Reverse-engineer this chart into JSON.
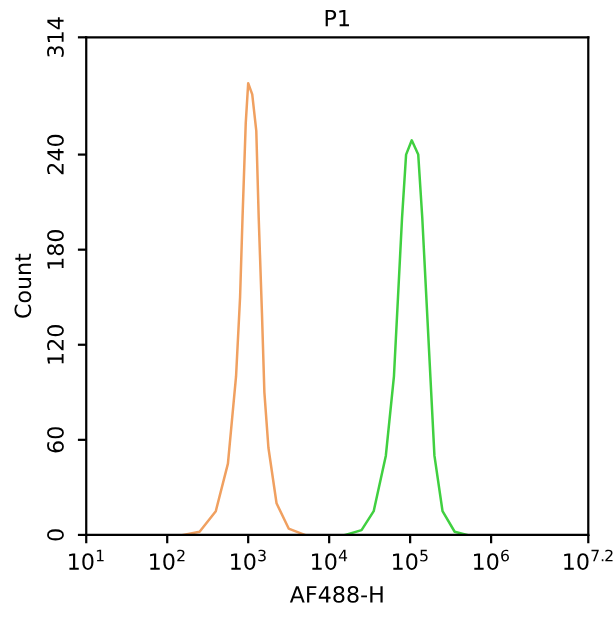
{
  "chart_data": {
    "type": "line",
    "title": "P1",
    "xlabel": "AF488-H",
    "ylabel": "Count",
    "log": "x",
    "xlim": [
      10,
      15848932
    ],
    "ylim": [
      0,
      314
    ],
    "xticks": [
      {
        "value": 10,
        "label": "10$^{1}$"
      },
      {
        "value": 100,
        "label": "10$^{2}$"
      },
      {
        "value": 1000,
        "label": "10$^{3}$"
      },
      {
        "value": 10000,
        "label": "10$^{4}$"
      },
      {
        "value": 100000,
        "label": "10$^{5}$"
      },
      {
        "value": 1000000,
        "label": "10$^{6}$"
      },
      {
        "value": 15848932,
        "label": "10$^{7.2}$"
      }
    ],
    "yticks": [
      0,
      60,
      120,
      180,
      240,
      314
    ],
    "grid": false,
    "legend": false,
    "marker": "none",
    "line_style": "solid",
    "series": [
      {
        "color": "#f0a060",
        "x": [
          158,
          251,
          398,
          562,
          708,
          794,
          851,
          933,
          1000,
          1122,
          1259,
          1349,
          1479,
          1585,
          1778,
          2239,
          3162,
          5012
        ],
        "values": [
          0,
          2,
          15,
          45,
          100,
          150,
          200,
          260,
          285,
          278,
          255,
          200,
          140,
          90,
          55,
          20,
          4,
          0
        ]
      },
      {
        "color": "#40d040",
        "x": [
          15849,
          25119,
          35481,
          50119,
          63096,
          70795,
          79433,
          89125,
          104713,
          125893,
          141254,
          158489,
          177828,
          199526,
          251189,
          354813,
          501187
        ],
        "values": [
          0,
          3,
          15,
          50,
          100,
          150,
          200,
          240,
          249,
          240,
          200,
          150,
          100,
          50,
          15,
          2,
          0
        ]
      }
    ]
  }
}
